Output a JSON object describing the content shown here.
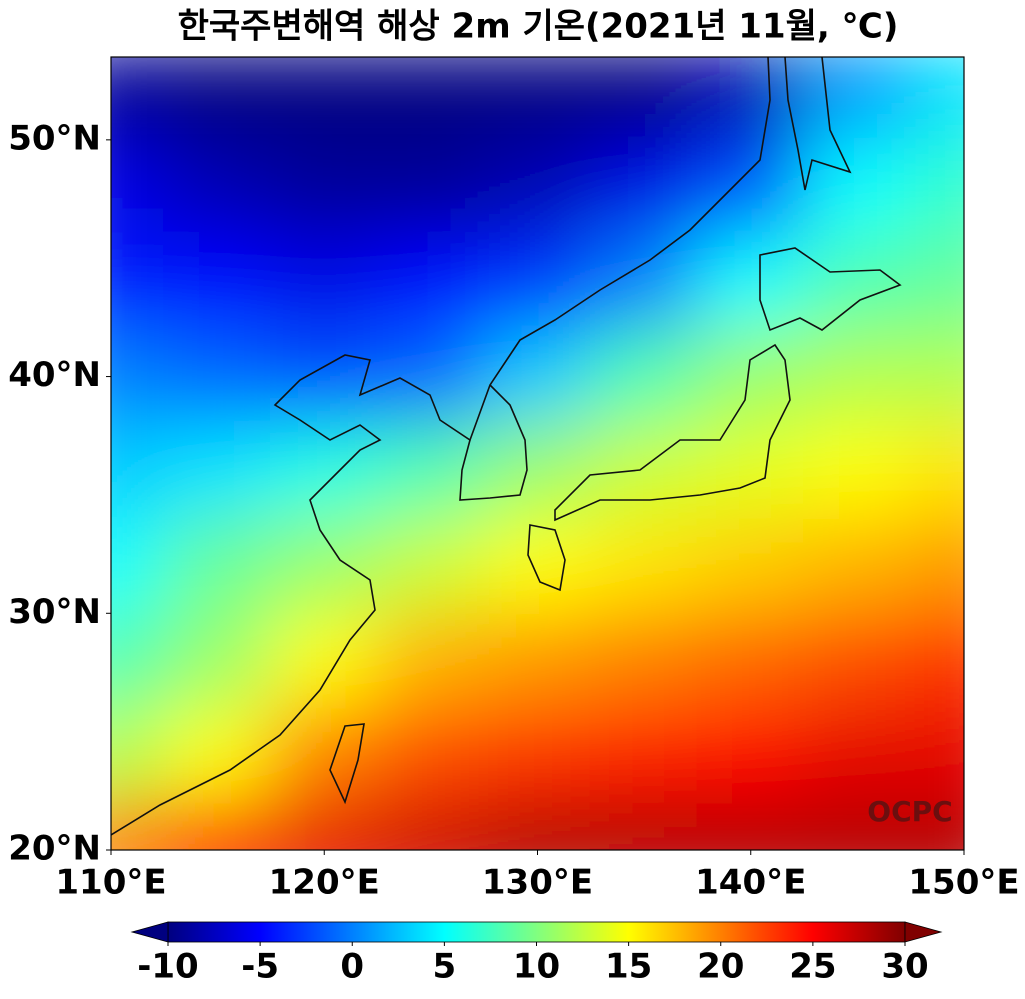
{
  "chart_data": {
    "type": "map",
    "title": "한국주변해역 해상 2m 기온(2021년 11월, ℃)",
    "xlim": [
      110,
      150
    ],
    "ylim": [
      20,
      53.5
    ],
    "xticks": [
      {
        "value": 110,
        "label": "110°E"
      },
      {
        "value": 120,
        "label": "120°E"
      },
      {
        "value": 130,
        "label": "130°E"
      },
      {
        "value": 140,
        "label": "140°E"
      },
      {
        "value": 150,
        "label": "150°E"
      }
    ],
    "yticks": [
      {
        "value": 20,
        "label": "20°N"
      },
      {
        "value": 30,
        "label": "30°N"
      },
      {
        "value": 40,
        "label": "40°N"
      },
      {
        "value": 50,
        "label": "50°N"
      }
    ],
    "watermark": "OCPC",
    "colormap": "jet",
    "colorbar": {
      "lim": [
        -10,
        30
      ],
      "ticks": [
        -10,
        -5,
        0,
        5,
        10,
        15,
        20,
        25,
        30
      ],
      "extend": "both"
    },
    "field": {
      "lons": [
        110,
        115,
        120,
        125,
        130,
        135,
        140,
        145,
        150
      ],
      "lats": [
        52,
        48,
        44,
        40,
        36,
        32,
        28,
        24,
        20
      ],
      "values": [
        [
          -9,
          -10,
          -10,
          -10,
          -10,
          -10,
          -8,
          1,
          4
        ],
        [
          -6,
          -8,
          -9,
          -9,
          -8,
          -6,
          -2,
          5,
          7
        ],
        [
          -4,
          -5,
          -6,
          -5,
          -3,
          0,
          5,
          8,
          9
        ],
        [
          0,
          -1,
          -2,
          -1,
          3,
          8,
          11,
          12,
          12
        ],
        [
          3,
          4,
          6,
          8,
          11,
          13,
          14,
          15,
          16
        ],
        [
          5,
          9,
          11,
          13,
          15,
          16,
          17,
          18,
          19
        ],
        [
          8,
          11,
          15,
          18,
          19,
          20,
          21,
          22,
          23
        ],
        [
          12,
          15,
          20,
          22,
          23,
          24,
          25,
          26,
          26
        ],
        [
          20,
          24,
          26,
          27,
          28,
          28,
          28,
          28,
          28
        ]
      ]
    }
  }
}
